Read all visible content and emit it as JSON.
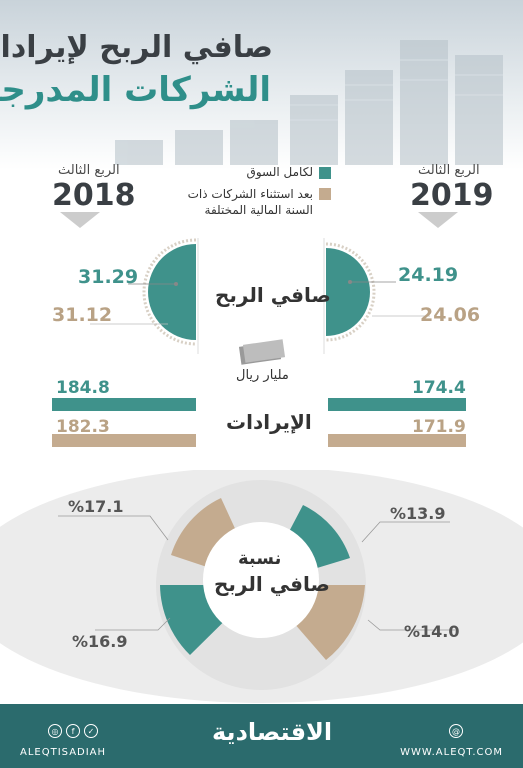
{
  "title": {
    "line1": "صافي الربح لإيرادات",
    "line2": "الشركات المدرجة"
  },
  "left_year": {
    "label": "الربع الثالث",
    "year": "2018"
  },
  "right_year": {
    "label": "الربع الثالث",
    "year": "2019"
  },
  "legend": [
    {
      "label": "لكامل السوق",
      "color": "#3f928b"
    },
    {
      "label": "بعد استثناء الشركات ذات السنة المالية المختلفة",
      "color": "#c4ab8f"
    }
  ],
  "net_profit": {
    "label": "صافي الربح",
    "unit": "مليار ريال",
    "2018": {
      "market": "31.29",
      "excl": "31.12"
    },
    "2019": {
      "market": "24.19",
      "excl": "24.06"
    }
  },
  "revenue": {
    "label": "الإيرادات",
    "2018": {
      "market": "184.8",
      "excl": "182.3"
    },
    "2019": {
      "market": "174.4",
      "excl": "171.9"
    }
  },
  "margin": {
    "label_line1": "نسبة",
    "label_line2": "صافي الربح",
    "2018": {
      "market": "%16.9",
      "excl": "%17.1"
    },
    "2019": {
      "market": "%13.9",
      "excl": "%14.0"
    }
  },
  "footer": {
    "brand": "الاقتصادية",
    "handle": "ALEQTISADIAH",
    "website": "WWW.ALEQT.COM"
  },
  "colors": {
    "teal": "#3f928b",
    "tan": "#c4ab8f",
    "footer": "#2b6b6d"
  }
}
